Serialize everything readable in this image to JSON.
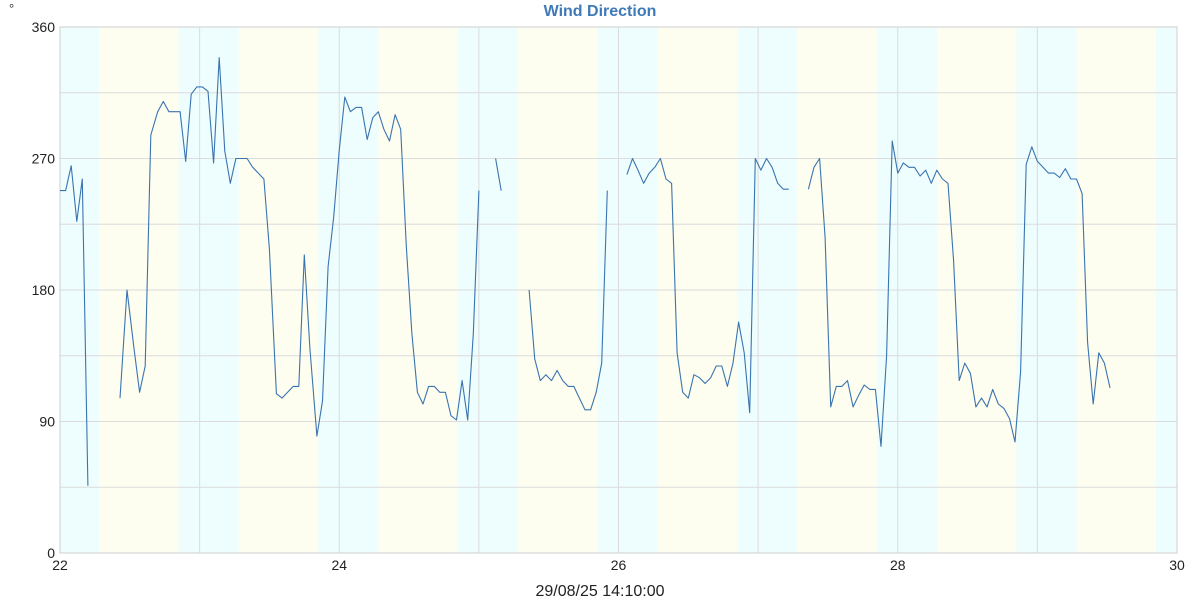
{
  "chart_data": {
    "type": "line",
    "title": "Wind Direction",
    "unit": "°",
    "footer_timestamp": "29/08/25 14:10:00",
    "xlabel": "",
    "ylabel": "",
    "xlim": [
      22,
      30
    ],
    "ylim": [
      0,
      360
    ],
    "x_ticks": [
      "22",
      "24",
      "26",
      "28",
      "30"
    ],
    "y_ticks": [
      "0",
      "90",
      "180",
      "270",
      "360"
    ],
    "grid": true,
    "legend": "none",
    "colors": {
      "line": "#3a74b0",
      "grid": "#dcdcdc",
      "day_band": "#fdfdf0",
      "night_band": "#eefdfd",
      "title": "#3f7ab8"
    },
    "background_bands": [
      {
        "start": 22.0,
        "end": 22.28,
        "kind": "night"
      },
      {
        "start": 22.28,
        "end": 22.85,
        "kind": "day"
      },
      {
        "start": 22.85,
        "end": 23.28,
        "kind": "night"
      },
      {
        "start": 23.28,
        "end": 23.85,
        "kind": "day"
      },
      {
        "start": 23.85,
        "end": 24.28,
        "kind": "night"
      },
      {
        "start": 24.28,
        "end": 24.85,
        "kind": "day"
      },
      {
        "start": 24.85,
        "end": 25.28,
        "kind": "night"
      },
      {
        "start": 25.28,
        "end": 25.85,
        "kind": "day"
      },
      {
        "start": 25.85,
        "end": 26.28,
        "kind": "night"
      },
      {
        "start": 26.28,
        "end": 26.85,
        "kind": "day"
      },
      {
        "start": 26.85,
        "end": 27.28,
        "kind": "night"
      },
      {
        "start": 27.28,
        "end": 27.85,
        "kind": "day"
      },
      {
        "start": 27.85,
        "end": 28.28,
        "kind": "night"
      },
      {
        "start": 28.28,
        "end": 28.85,
        "kind": "day"
      },
      {
        "start": 28.85,
        "end": 29.28,
        "kind": "night"
      },
      {
        "start": 29.28,
        "end": 29.85,
        "kind": "day"
      },
      {
        "start": 29.85,
        "end": 30.0,
        "kind": "night"
      }
    ],
    "series": [
      {
        "segments": [
          [
            [
              22.0,
              248
            ],
            [
              22.04,
              248
            ],
            [
              22.08,
              265
            ],
            [
              22.12,
              227
            ],
            [
              22.16,
              256
            ],
            [
              22.2,
              46
            ]
          ],
          [
            [
              22.43,
              106
            ],
            [
              22.48,
              180
            ],
            [
              22.53,
              140
            ],
            [
              22.57,
              110
            ],
            [
              22.61,
              128
            ],
            [
              22.65,
              286
            ],
            [
              22.7,
              302
            ],
            [
              22.74,
              309
            ],
            [
              22.78,
              302
            ],
            [
              22.82,
              302
            ],
            [
              22.86,
              302
            ],
            [
              22.9,
              268
            ],
            [
              22.94,
              314
            ],
            [
              22.98,
              319
            ],
            [
              23.02,
              319
            ],
            [
              23.06,
              316
            ],
            [
              23.1,
              267
            ],
            [
              23.14,
              339
            ],
            [
              23.18,
              275
            ],
            [
              23.22,
              253
            ],
            [
              23.26,
              270
            ],
            [
              23.3,
              270
            ],
            [
              23.34,
              270
            ],
            [
              23.38,
              264
            ],
            [
              23.42,
              260
            ],
            [
              23.46,
              256
            ],
            [
              23.5,
              208
            ],
            [
              23.55,
              109
            ],
            [
              23.59,
              106
            ],
            [
              23.63,
              110
            ],
            [
              23.67,
              114
            ],
            [
              23.71,
              114
            ],
            [
              23.75,
              204
            ],
            [
              23.79,
              140
            ],
            [
              23.84,
              80
            ],
            [
              23.88,
              104
            ],
            [
              23.92,
              196
            ],
            [
              23.96,
              230
            ],
            [
              24.0,
              276
            ],
            [
              24.04,
              312
            ],
            [
              24.08,
              302
            ],
            [
              24.12,
              305
            ],
            [
              24.16,
              305
            ],
            [
              24.2,
              283
            ],
            [
              24.24,
              298
            ],
            [
              24.28,
              302
            ],
            [
              24.32,
              290
            ],
            [
              24.36,
              282
            ],
            [
              24.4,
              300
            ],
            [
              24.44,
              290
            ],
            [
              24.48,
              210
            ],
            [
              24.52,
              150
            ],
            [
              24.56,
              110
            ],
            [
              24.6,
              102
            ],
            [
              24.64,
              114
            ],
            [
              24.68,
              114
            ],
            [
              24.72,
              110
            ],
            [
              24.76,
              110
            ],
            [
              24.8,
              94
            ],
            [
              24.84,
              91
            ],
            [
              24.88,
              118
            ],
            [
              24.92,
              91
            ],
            [
              24.96,
              150
            ],
            [
              25.0,
              248
            ]
          ],
          [
            [
              25.12,
              270
            ],
            [
              25.16,
              248
            ]
          ],
          [
            [
              25.36,
              180
            ],
            [
              25.4,
              133
            ],
            [
              25.44,
              118
            ],
            [
              25.48,
              122
            ],
            [
              25.52,
              118
            ],
            [
              25.56,
              125
            ],
            [
              25.6,
              118
            ],
            [
              25.64,
              114
            ],
            [
              25.68,
              114
            ],
            [
              25.72,
              106
            ],
            [
              25.76,
              98
            ],
            [
              25.8,
              98
            ],
            [
              25.84,
              110
            ],
            [
              25.88,
              130
            ],
            [
              25.92,
              248
            ]
          ],
          [
            [
              26.06,
              259
            ],
            [
              26.1,
              270
            ],
            [
              26.14,
              262
            ],
            [
              26.18,
              253
            ],
            [
              26.22,
              260
            ],
            [
              26.26,
              264
            ],
            [
              26.3,
              270
            ],
            [
              26.34,
              256
            ],
            [
              26.38,
              253
            ],
            [
              26.42,
              137
            ],
            [
              26.46,
              110
            ],
            [
              26.5,
              106
            ],
            [
              26.54,
              122
            ],
            [
              26.58,
              120
            ],
            [
              26.62,
              116
            ],
            [
              26.66,
              120
            ],
            [
              26.7,
              128
            ],
            [
              26.74,
              128
            ],
            [
              26.78,
              114
            ],
            [
              26.82,
              130
            ],
            [
              26.86,
              158
            ],
            [
              26.9,
              137
            ],
            [
              26.94,
              96
            ],
            [
              26.98,
              270
            ],
            [
              27.02,
              262
            ],
            [
              27.06,
              270
            ],
            [
              27.1,
              264
            ],
            [
              27.14,
              253
            ],
            [
              27.18,
              249
            ],
            [
              27.22,
              249
            ]
          ],
          [
            [
              27.36,
              249
            ],
            [
              27.4,
              264
            ],
            [
              27.44,
              270
            ],
            [
              27.48,
              216
            ],
            [
              27.52,
              100
            ],
            [
              27.56,
              114
            ],
            [
              27.6,
              114
            ],
            [
              27.64,
              118
            ],
            [
              27.68,
              100
            ],
            [
              27.72,
              108
            ],
            [
              27.76,
              115
            ],
            [
              27.8,
              112
            ],
            [
              27.84,
              112
            ],
            [
              27.88,
              73
            ],
            [
              27.92,
              135
            ],
            [
              27.96,
              282
            ],
            [
              28.0,
              260
            ],
            [
              28.04,
              267
            ],
            [
              28.08,
              264
            ],
            [
              28.12,
              264
            ],
            [
              28.16,
              258
            ],
            [
              28.2,
              262
            ],
            [
              28.24,
              253
            ],
            [
              28.28,
              262
            ],
            [
              28.32,
              256
            ],
            [
              28.36,
              253
            ],
            [
              28.4,
              200
            ],
            [
              28.44,
              118
            ],
            [
              28.48,
              130
            ],
            [
              28.52,
              123
            ],
            [
              28.56,
              100
            ],
            [
              28.6,
              106
            ],
            [
              28.64,
              100
            ],
            [
              28.68,
              112
            ],
            [
              28.72,
              102
            ],
            [
              28.76,
              99
            ],
            [
              28.8,
              92
            ],
            [
              28.84,
              76
            ],
            [
              28.88,
              124
            ],
            [
              28.92,
              266
            ],
            [
              28.96,
              278
            ],
            [
              29.0,
              268
            ],
            [
              29.04,
              264
            ],
            [
              29.08,
              260
            ],
            [
              29.12,
              260
            ],
            [
              29.16,
              257
            ],
            [
              29.2,
              263
            ],
            [
              29.24,
              256
            ],
            [
              29.28,
              256
            ],
            [
              29.32,
              246
            ],
            [
              29.36,
              144
            ],
            [
              29.4,
              102
            ],
            [
              29.44,
              137
            ],
            [
              29.48,
              130
            ],
            [
              29.52,
              113
            ]
          ]
        ]
      }
    ]
  }
}
